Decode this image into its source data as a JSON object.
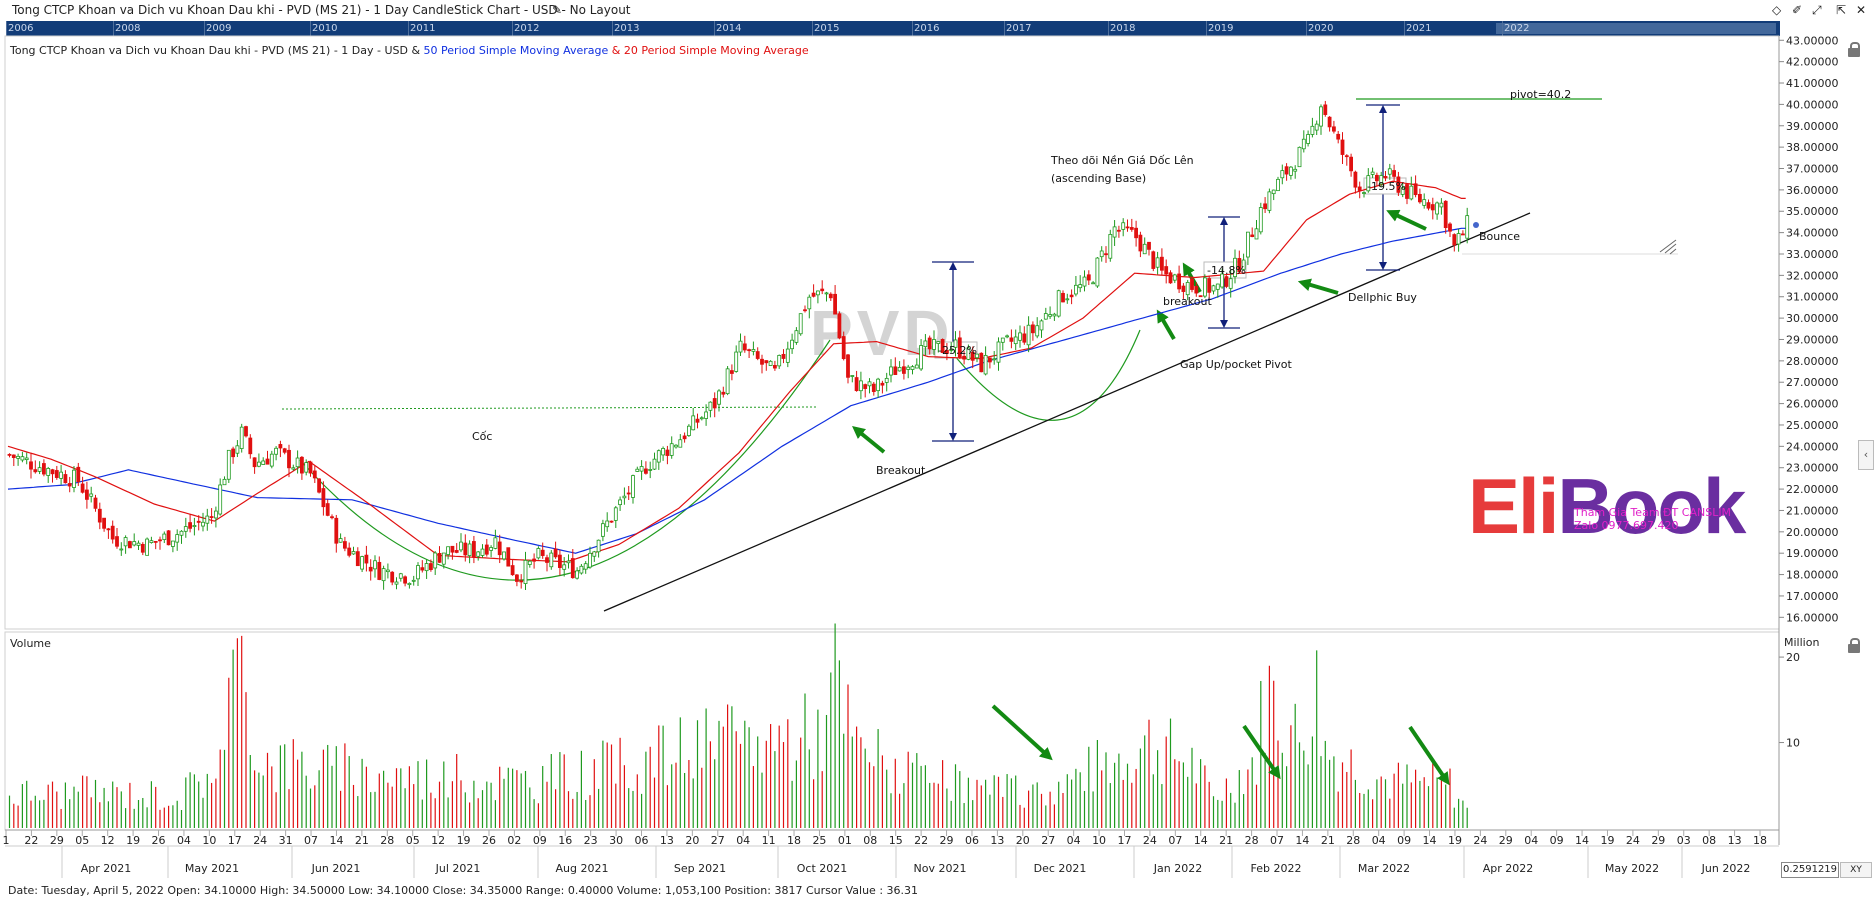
{
  "window": {
    "title": "Tong CTCP Khoan va Dich vu Khoan Dau khi - PVD (MS 21) - 1 Day CandleStick Chart - USD - No Layout",
    "controls": [
      "◇",
      "✐",
      "⤢",
      "⇱",
      "✕"
    ]
  },
  "year_band": {
    "labels": [
      "2006",
      "2008",
      "2009",
      "2010",
      "2011",
      "2012",
      "2013",
      "2014",
      "2015",
      "2016",
      "2017",
      "2018",
      "2019",
      "2020",
      "2021",
      "2022"
    ]
  },
  "legend": {
    "prefix": "Tong CTCP Khoan va Dich vu Khoan Dau khi - PVD (MS 21) - 1 Day - USD & ",
    "sma50": "50 Period Simple Moving Average",
    "amp": " & ",
    "sma20": "20 Period Simple Moving Average"
  },
  "colors": {
    "up": "#1f9a1f",
    "down": "#e01010",
    "sma50": "#1030e0",
    "sma20": "#e01010",
    "arrow": "#138a13",
    "band": "#123c78"
  },
  "watermark": "PVD",
  "logo": {
    "part1": "Eli",
    "part2": "Book"
  },
  "promo": {
    "line1": "Tham Gia Team ĐT CANSLIM",
    "line2": "Zalo 0977.697.420"
  },
  "annotations": {
    "coc": "Cốc",
    "breakout1": "Breakout",
    "ascending1": "Theo dõi Nền Giá Dốc Lên",
    "ascending2": "(ascending Base)",
    "breakout2": "breakout",
    "gapup": "Gap Up/pocket Pivot",
    "dellphic": "Dellphic Buy",
    "bounce": "Bounce",
    "pivot": "pivot=40.2",
    "pct1": "-25.2%",
    "pct2": "-14.8%",
    "pct3": "-19.5%"
  },
  "volume_panel": {
    "label": "Volume",
    "unit": "Million"
  },
  "status": "Date: Tuesday, April 5, 2022 Open: 34.10000 High: 34.50000 Low: 34.10000 Close: 34.35000 Range: 0.40000 Volume: 1,053,100 Position: 3817 Cursor Value : 36.31",
  "cursor_value": "0.2591219",
  "xy_label": "XY",
  "chart_data": {
    "type": "candlestick",
    "ylim": [
      15.5,
      43.2
    ],
    "y_ticks": [
      "16.00000",
      "17.00000",
      "18.00000",
      "19.00000",
      "20.00000",
      "21.00000",
      "22.00000",
      "23.00000",
      "24.00000",
      "25.00000",
      "26.00000",
      "27.00000",
      "28.00000",
      "29.00000",
      "30.00000",
      "31.00000",
      "32.00000",
      "33.00000",
      "34.00000",
      "35.00000",
      "36.00000",
      "37.00000",
      "38.00000",
      "39.00000",
      "40.00000",
      "41.00000",
      "42.00000",
      "43.00000"
    ],
    "volume_ticks": [
      "20",
      "10"
    ],
    "x_day_labels": [
      "1",
      "22",
      "29",
      "05",
      "12",
      "19",
      "26",
      "04",
      "10",
      "17",
      "24",
      "31",
      "07",
      "14",
      "21",
      "28",
      "05",
      "12",
      "19",
      "26",
      "02",
      "09",
      "16",
      "23",
      "30",
      "06",
      "13",
      "20",
      "27",
      "04",
      "11",
      "18",
      "25",
      "01",
      "08",
      "15",
      "22",
      "29",
      "06",
      "13",
      "20",
      "27",
      "04",
      "10",
      "17",
      "24",
      "07",
      "14",
      "21",
      "28",
      "07",
      "14",
      "21",
      "28",
      "04",
      "09",
      "14",
      "19",
      "24",
      "29",
      "04",
      "09",
      "14",
      "19",
      "24",
      "29",
      "03",
      "08",
      "13",
      "18"
    ],
    "x_month_labels": [
      "Apr 2021",
      "May 2021",
      "Jun 2021",
      "Jul 2021",
      "Aug 2021",
      "Sep 2021",
      "Oct 2021",
      "Nov 2021",
      "Dec 2021",
      "Jan 2022",
      "Feb 2022",
      "Mar 2022",
      "Apr 2022",
      "May 2022",
      "Jun 2022"
    ],
    "close_anchors": [
      [
        0,
        23.6
      ],
      [
        8,
        23.0
      ],
      [
        16,
        22.4
      ],
      [
        24,
        19.7
      ],
      [
        32,
        19.4
      ],
      [
        40,
        20.0
      ],
      [
        47,
        20.7
      ],
      [
        51,
        23.4
      ],
      [
        54,
        24.6
      ],
      [
        57,
        23.2
      ],
      [
        62,
        23.7
      ],
      [
        70,
        22.7
      ],
      [
        77,
        19.4
      ],
      [
        86,
        18.2
      ],
      [
        94,
        17.9
      ],
      [
        101,
        19.1
      ],
      [
        108,
        19.1
      ],
      [
        113,
        19.6
      ],
      [
        118,
        17.9
      ],
      [
        123,
        18.8
      ],
      [
        132,
        18.2
      ],
      [
        140,
        20.7
      ],
      [
        148,
        23.1
      ],
      [
        156,
        24.4
      ],
      [
        164,
        26.0
      ],
      [
        170,
        28.6
      ],
      [
        178,
        27.4
      ],
      [
        186,
        31.0
      ],
      [
        191,
        31.2
      ],
      [
        195,
        27.1
      ],
      [
        201,
        26.6
      ],
      [
        206,
        27.6
      ],
      [
        213,
        28.5
      ],
      [
        220,
        28.7
      ],
      [
        226,
        27.8
      ],
      [
        232,
        28.8
      ],
      [
        238,
        29.4
      ],
      [
        245,
        31.1
      ],
      [
        251,
        31.6
      ],
      [
        257,
        34.2
      ],
      [
        262,
        33.8
      ],
      [
        268,
        32.1
      ],
      [
        275,
        31.5
      ],
      [
        281,
        31.4
      ],
      [
        286,
        32.6
      ],
      [
        291,
        35.1
      ],
      [
        296,
        36.6
      ],
      [
        302,
        38.2
      ],
      [
        305,
        40.1
      ],
      [
        309,
        38.1
      ],
      [
        314,
        36.1
      ],
      [
        320,
        36.7
      ],
      [
        327,
        35.6
      ],
      [
        333,
        35.3
      ],
      [
        336,
        33.3
      ],
      [
        339,
        34.35
      ]
    ],
    "sma20_anchors": [
      [
        0,
        24.0
      ],
      [
        10,
        23.4
      ],
      [
        20,
        22.6
      ],
      [
        34,
        21.3
      ],
      [
        48,
        20.5
      ],
      [
        58,
        21.8
      ],
      [
        70,
        23.3
      ],
      [
        84,
        21.3
      ],
      [
        100,
        18.9
      ],
      [
        118,
        18.7
      ],
      [
        130,
        18.6
      ],
      [
        142,
        19.4
      ],
      [
        156,
        21.1
      ],
      [
        170,
        23.7
      ],
      [
        182,
        26.6
      ],
      [
        192,
        28.8
      ],
      [
        202,
        28.9
      ],
      [
        214,
        28.2
      ],
      [
        226,
        28.1
      ],
      [
        238,
        28.6
      ],
      [
        250,
        30.0
      ],
      [
        262,
        32.1
      ],
      [
        276,
        31.9
      ],
      [
        292,
        32.2
      ],
      [
        302,
        34.6
      ],
      [
        312,
        35.8
      ],
      [
        322,
        36.4
      ],
      [
        332,
        36.1
      ],
      [
        338,
        35.6
      ]
    ],
    "sma50_anchors": [
      [
        0,
        22.0
      ],
      [
        14,
        22.2
      ],
      [
        28,
        22.9
      ],
      [
        44,
        22.2
      ],
      [
        58,
        21.6
      ],
      [
        80,
        21.5
      ],
      [
        100,
        20.4
      ],
      [
        118,
        19.6
      ],
      [
        132,
        19.0
      ],
      [
        146,
        19.9
      ],
      [
        162,
        21.5
      ],
      [
        180,
        24.0
      ],
      [
        196,
        25.9
      ],
      [
        214,
        27.0
      ],
      [
        228,
        28.0
      ],
      [
        246,
        29.0
      ],
      [
        262,
        29.9
      ],
      [
        280,
        30.9
      ],
      [
        296,
        32.1
      ],
      [
        310,
        33.0
      ],
      [
        322,
        33.6
      ],
      [
        338,
        34.2
      ]
    ],
    "volume_anchors": [
      [
        0,
        4.0
      ],
      [
        20,
        4.2
      ],
      [
        40,
        3.8
      ],
      [
        50,
        8.5
      ],
      [
        52,
        19.0
      ],
      [
        56,
        12.0
      ],
      [
        60,
        8.0
      ],
      [
        80,
        6.5
      ],
      [
        100,
        6.0
      ],
      [
        120,
        5.5
      ],
      [
        140,
        7.0
      ],
      [
        160,
        9.5
      ],
      [
        180,
        10.5
      ],
      [
        190,
        11.5
      ],
      [
        192,
        18.0
      ],
      [
        196,
        10.0
      ],
      [
        210,
        6.0
      ],
      [
        225,
        4.5
      ],
      [
        240,
        4.0
      ],
      [
        255,
        7.5
      ],
      [
        265,
        10.0
      ],
      [
        275,
        7.5
      ],
      [
        280,
        3.5
      ],
      [
        290,
        8.0
      ],
      [
        292,
        16.5
      ],
      [
        296,
        13.0
      ],
      [
        300,
        10.0
      ],
      [
        304,
        16.0
      ],
      [
        306,
        9.0
      ],
      [
        320,
        5.5
      ],
      [
        335,
        5.0
      ],
      [
        339,
        2.0
      ]
    ]
  }
}
